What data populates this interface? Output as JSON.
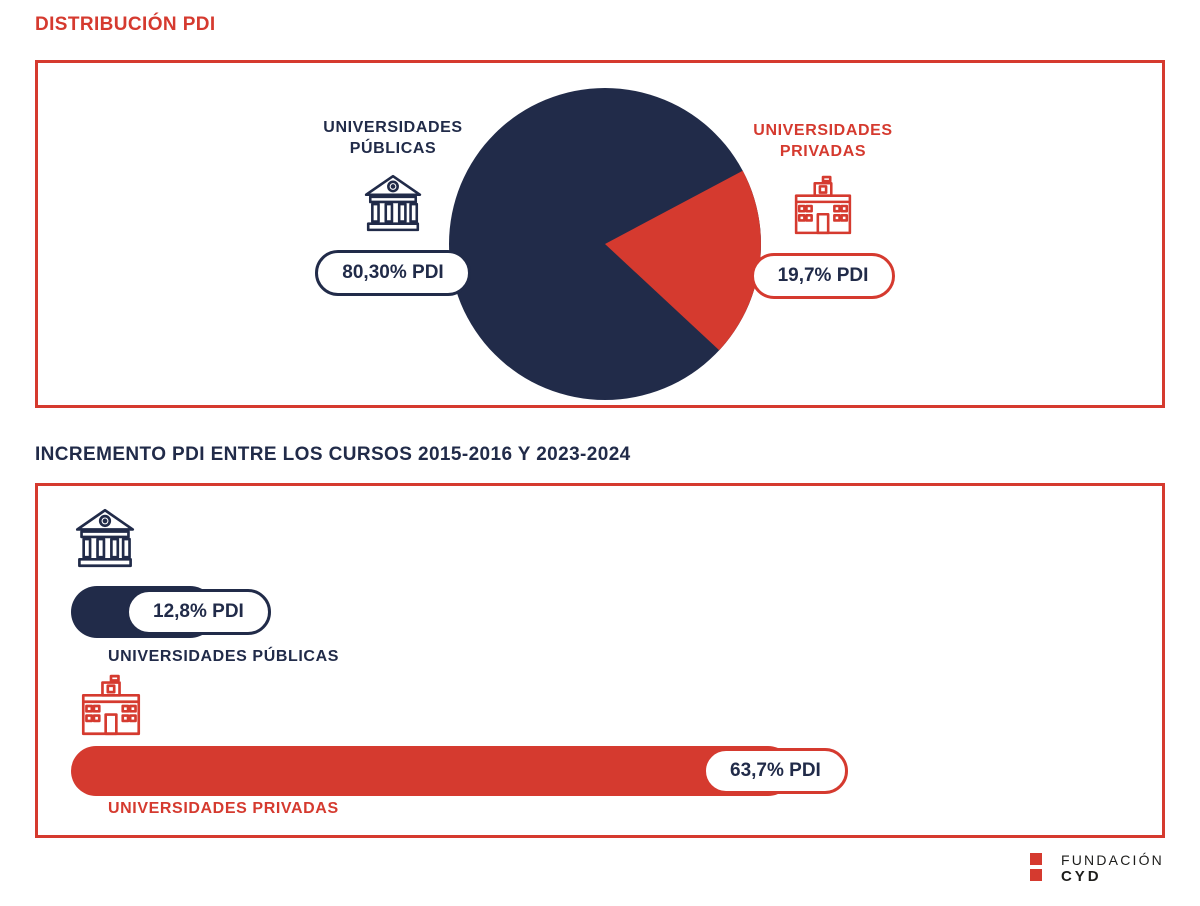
{
  "sections": [
    {
      "title": "DISTRIBUCIÓN PDI",
      "pie": {
        "left": {
          "label1": "UNIVERSIDADES",
          "label2": "PÚBLICAS",
          "badge": "80,30% PDI"
        },
        "right": {
          "label1": "UNIVERSIDADES",
          "label2": "PRIVADAS",
          "badge": "19,7% PDI"
        }
      }
    },
    {
      "title": "INCREMENTO PDI ENTRE LOS CURSOS 2015-2016 Y 2023-2024",
      "bars": [
        {
          "label": "UNIVERSIDADES PÚBLICAS",
          "badge": "12,8% PDI"
        },
        {
          "label": "UNIVERSIDADES PRIVADAS",
          "badge": "63,7% PDI"
        }
      ]
    }
  ],
  "footer": {
    "brand_line1": "FUNDACIÓN",
    "brand_line2": "CYD"
  },
  "colors": {
    "navy": "#212b49",
    "red": "#d53a2f"
  },
  "chart_data": [
    {
      "type": "pie",
      "title": "DISTRIBUCIÓN PDI",
      "labels": [
        "UNIVERSIDADES PÚBLICAS",
        "UNIVERSIDADES PRIVADAS"
      ],
      "values": [
        80.3,
        19.7
      ],
      "data_labels": [
        "80,30% PDI",
        "19,7% PDI"
      ],
      "colors": [
        "#212b49",
        "#d53a2f"
      ],
      "legend_position": "sides"
    },
    {
      "type": "bar",
      "title": "INCREMENTO PDI ENTRE LOS CURSOS 2015-2016 Y 2023-2024",
      "orientation": "horizontal",
      "categories": [
        "UNIVERSIDADES PÚBLICAS",
        "UNIVERSIDADES PRIVADAS"
      ],
      "values": [
        12.8,
        63.7
      ],
      "data_labels": [
        "12,8% PDI",
        "63,7% PDI"
      ],
      "colors": [
        "#212b49",
        "#d53a2f"
      ],
      "xlim": [
        0,
        100
      ],
      "grid": false
    }
  ]
}
